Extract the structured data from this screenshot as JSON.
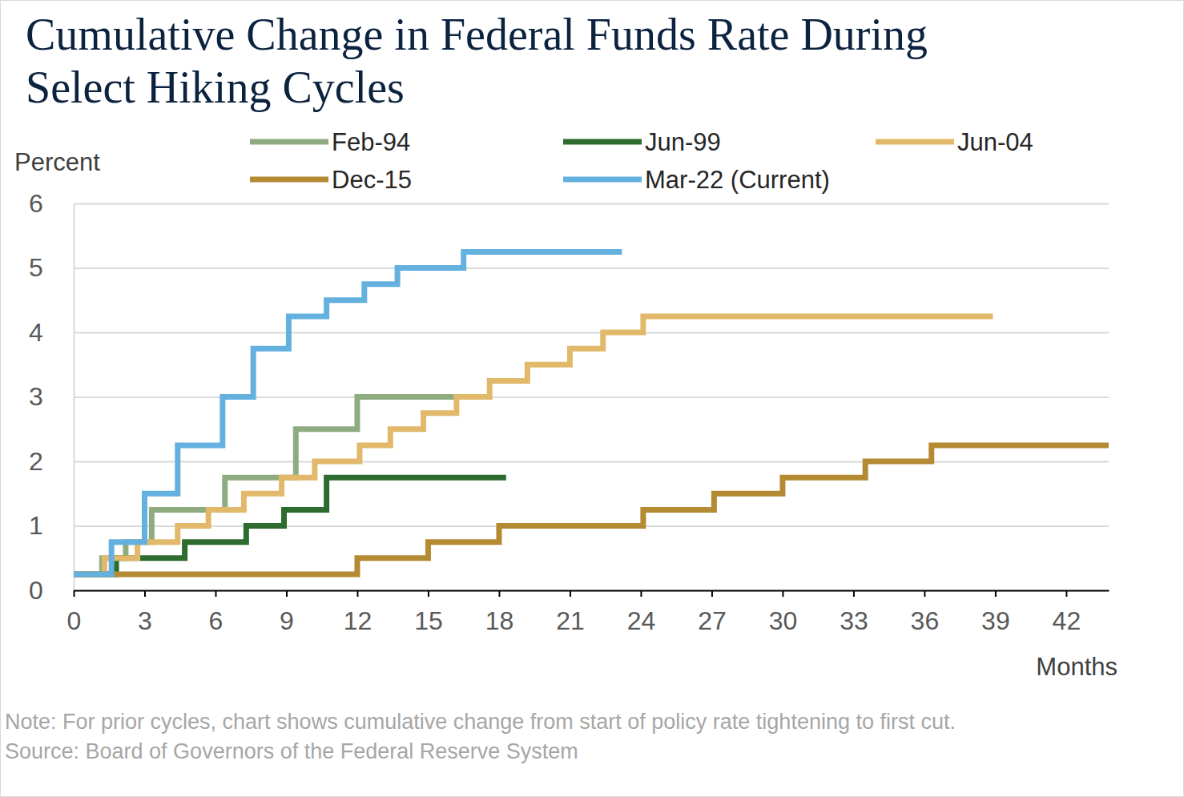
{
  "chart_data": {
    "type": "line",
    "title": "Cumulative Change in Federal Funds Rate During Select Hiking Cycles",
    "y_label": "Percent",
    "x_label": "Months",
    "note": "Note: For prior cycles, chart shows cumulative change from start of policy rate tightening to first cut.",
    "source": "Source: Board of Governors of the Federal Reserve System",
    "xlim": [
      0,
      43.8
    ],
    "xticks": [
      0,
      3,
      6,
      9,
      12,
      15,
      18,
      21,
      24,
      27,
      30,
      33,
      36,
      39,
      42
    ],
    "ylim": [
      0,
      6
    ],
    "yticks": [
      0,
      1,
      2,
      3,
      4,
      5,
      6
    ],
    "grid": true,
    "series": [
      {
        "name": "Feb-94",
        "color": "#8fac80",
        "x": [
          0,
          1.2,
          2.2,
          3.3,
          6.4,
          9.4,
          12.0,
          16.1
        ],
        "values": [
          0.25,
          0.5,
          0.75,
          1.25,
          1.75,
          2.5,
          3.0,
          3.0
        ]
      },
      {
        "name": "Jun-99",
        "color": "#2e6b2e",
        "x": [
          0,
          1.8,
          4.7,
          7.3,
          8.9,
          10.7,
          18.3
        ],
        "values": [
          0.25,
          0.5,
          0.75,
          1.0,
          1.25,
          1.75,
          1.75
        ]
      },
      {
        "name": "Jun-04",
        "color": "#e2b96a",
        "x": [
          0,
          1.3,
          2.7,
          4.4,
          5.7,
          7.2,
          8.8,
          10.2,
          12.1,
          13.4,
          14.8,
          16.2,
          17.6,
          19.2,
          21.0,
          22.4,
          24.1,
          38.9
        ],
        "values": [
          0.25,
          0.5,
          0.75,
          1.0,
          1.25,
          1.5,
          1.75,
          2.0,
          2.25,
          2.5,
          2.75,
          3.0,
          3.25,
          3.5,
          3.75,
          4.0,
          4.25,
          4.25
        ]
      },
      {
        "name": "Dec-15",
        "color": "#b48a32",
        "x": [
          0,
          12.0,
          15.0,
          18.0,
          24.1,
          27.1,
          30.0,
          33.5,
          36.3,
          43.8
        ],
        "values": [
          0.25,
          0.5,
          0.75,
          1.0,
          1.25,
          1.5,
          1.75,
          2.0,
          2.25,
          2.25
        ]
      },
      {
        "name": "Mar-22 (Current)",
        "color": "#64b1e0",
        "x": [
          0,
          1.6,
          3.0,
          4.4,
          6.3,
          7.6,
          9.1,
          10.7,
          12.3,
          13.7,
          16.5,
          23.2
        ],
        "values": [
          0.25,
          0.75,
          1.5,
          2.25,
          3.0,
          3.75,
          4.25,
          4.5,
          4.75,
          5.0,
          5.25,
          5.25
        ]
      }
    ]
  }
}
